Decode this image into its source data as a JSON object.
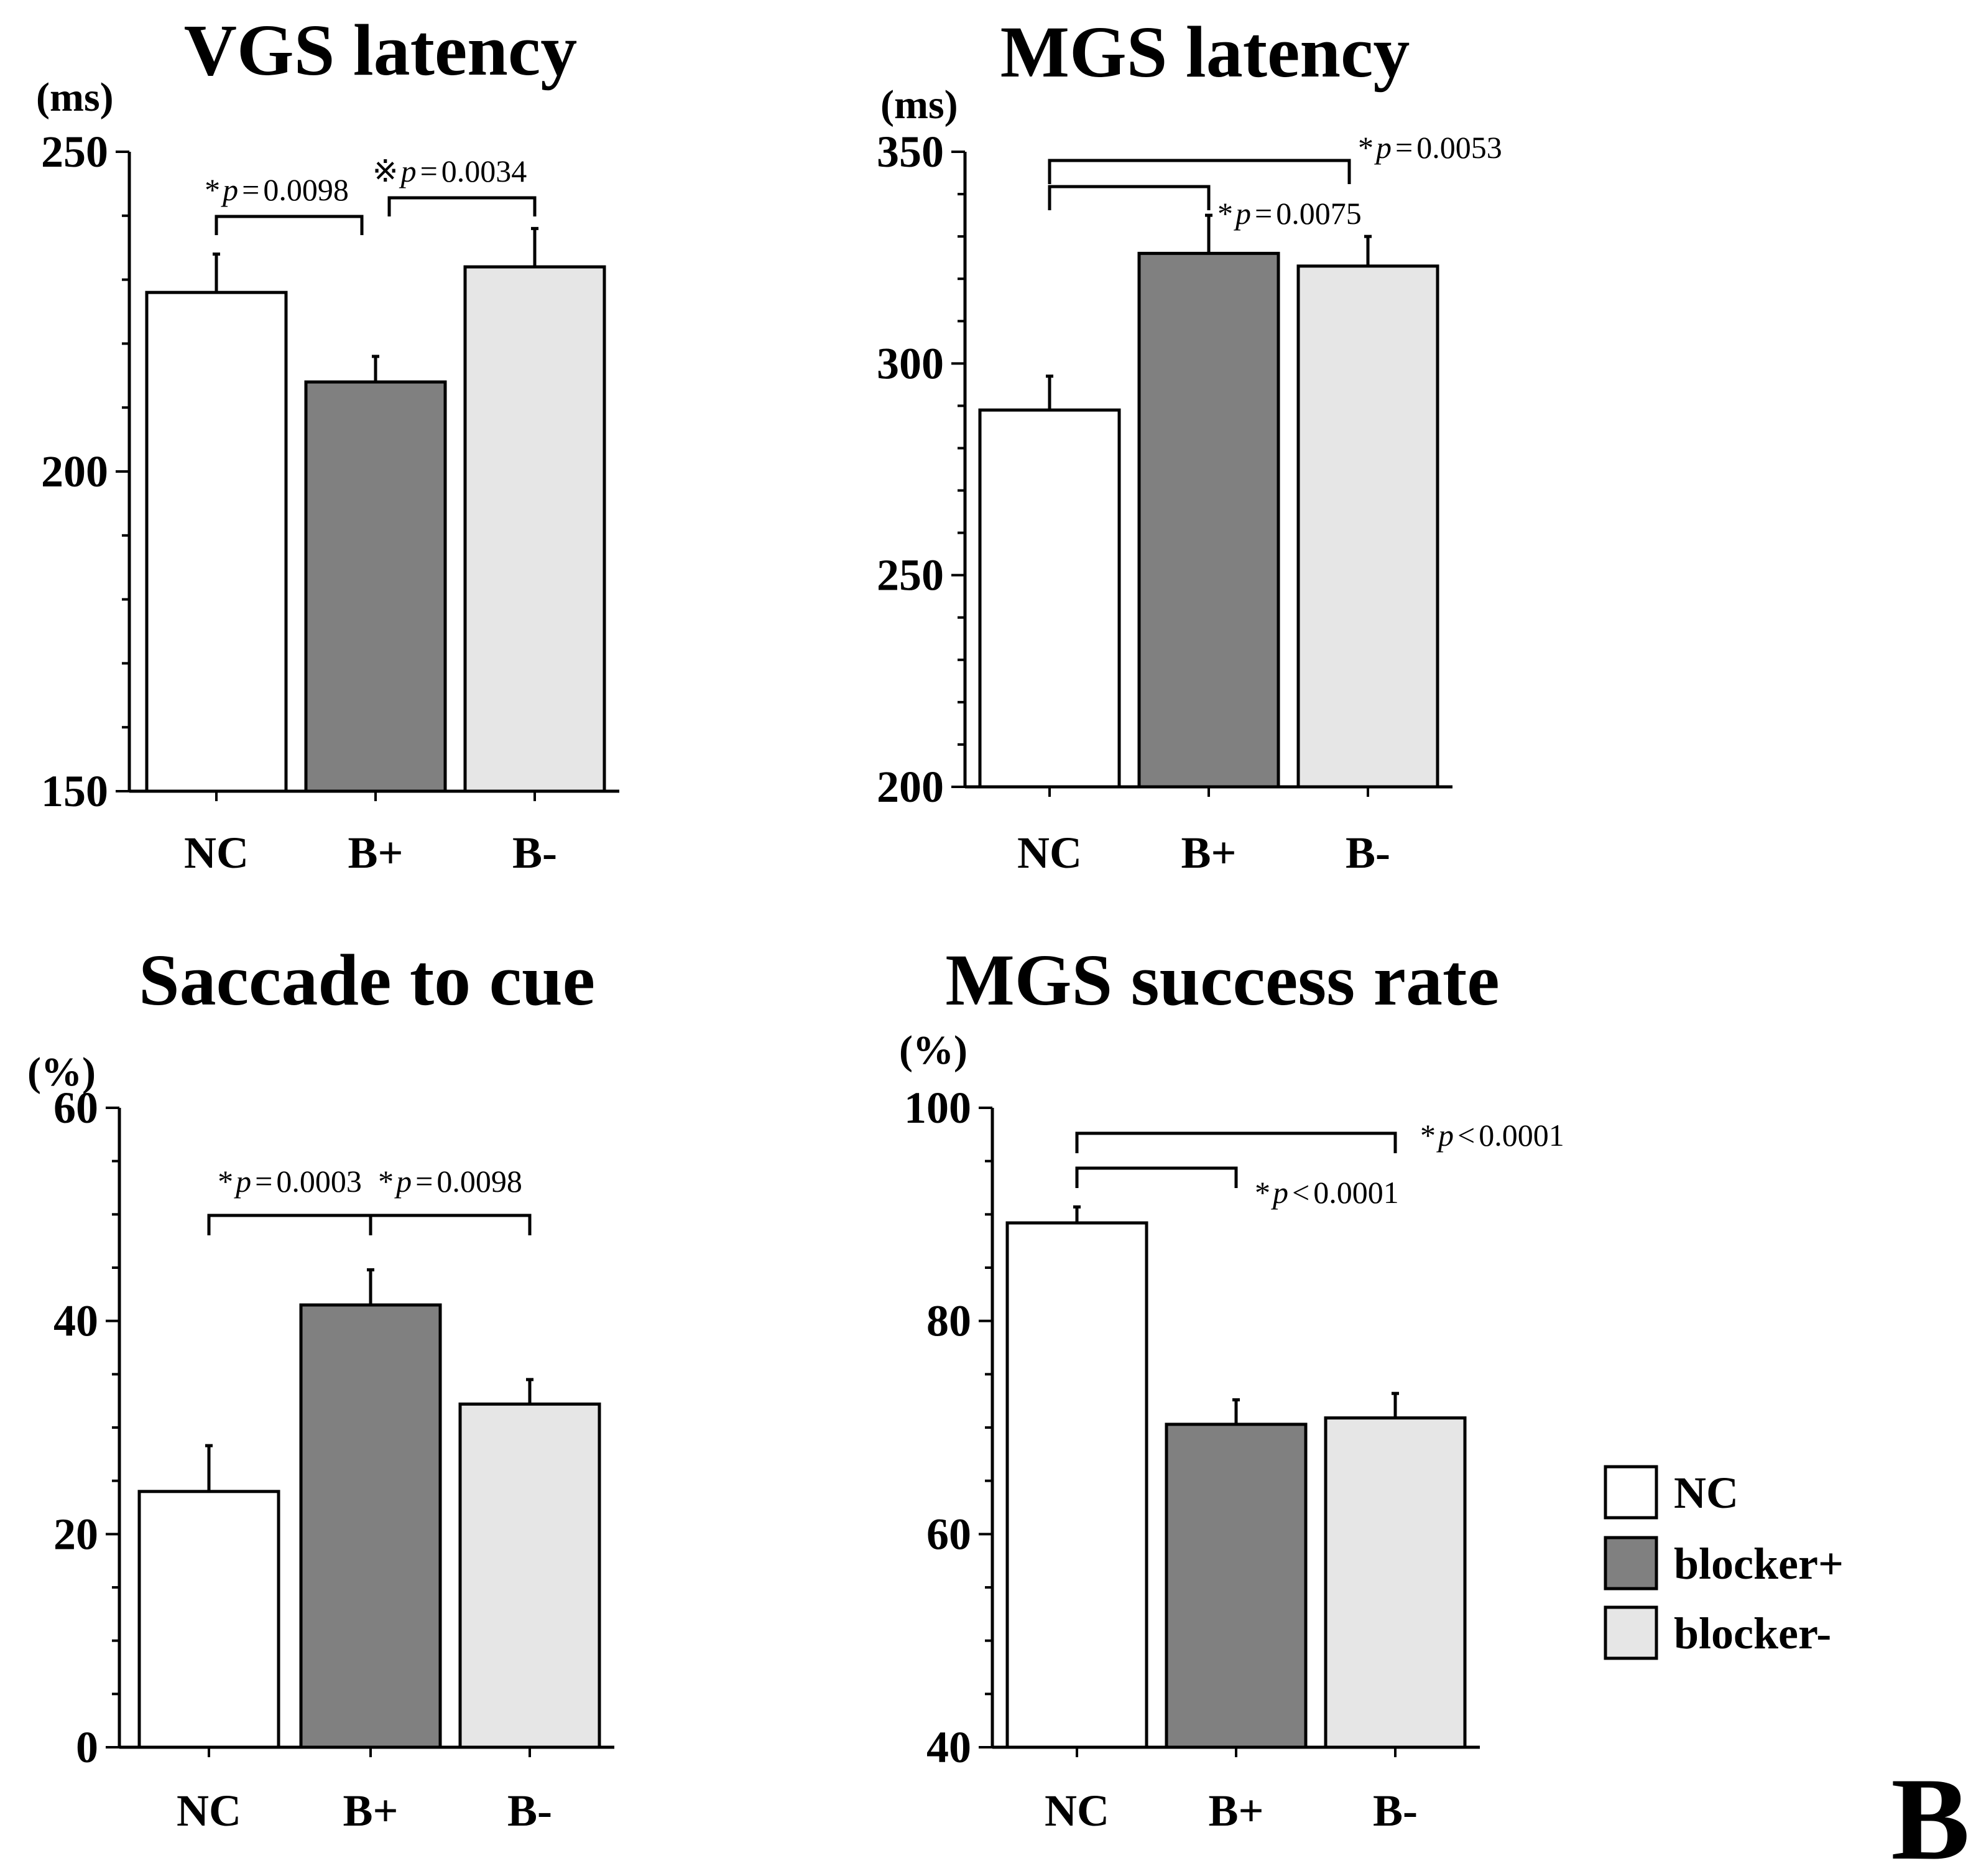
{
  "panel_label": "B",
  "legend": {
    "items": [
      {
        "label": "NC",
        "color": "#ffffff"
      },
      {
        "label": "blocker+",
        "color": "#808080"
      },
      {
        "label": "blocker-",
        "color": "#e6e6e6"
      }
    ]
  },
  "colors": {
    "NC": "#ffffff",
    "B+": "#808080",
    "B-": "#e6e6e6"
  },
  "chart_data": [
    {
      "type": "bar",
      "title": "VGS latency",
      "unit": "(ms)",
      "categories": [
        "NC",
        "B+",
        "B-"
      ],
      "values": [
        228,
        214,
        232
      ],
      "errors": [
        6,
        4,
        6
      ],
      "ylim": [
        150,
        250
      ],
      "yticks": [
        150,
        200,
        250
      ],
      "minor_step": 10,
      "grid": false,
      "annotations": [
        {
          "from": 0,
          "to": 1,
          "star": "*",
          "p": "p",
          "op": "=",
          "value": "0.0098",
          "level": 0
        },
        {
          "from": 1,
          "to": 2,
          "star": "※",
          "p": "p",
          "op": "=",
          "value": "0.0034",
          "level": 1
        }
      ]
    },
    {
      "type": "bar",
      "title": "MGS latency",
      "unit": "(ms)",
      "categories": [
        "NC",
        "B+",
        "B-"
      ],
      "values": [
        289,
        326,
        323
      ],
      "errors": [
        8,
        9,
        7
      ],
      "ylim": [
        200,
        350
      ],
      "yticks": [
        200,
        250,
        300,
        350
      ],
      "minor_step": 10,
      "grid": false,
      "annotations": [
        {
          "from": 0,
          "to": 2,
          "star": "*",
          "p": "p",
          "op": "=",
          "value": "0.0053",
          "level": 1
        },
        {
          "from": 0,
          "to": 1,
          "star": "*",
          "p": "p",
          "op": "=",
          "value": "0.0075",
          "level": 0
        }
      ]
    },
    {
      "type": "bar",
      "title": "Saccade to cue",
      "unit": "(%)",
      "categories": [
        "NC",
        "B+",
        "B-"
      ],
      "values": [
        24,
        41.5,
        32.2
      ],
      "errors": [
        4.3,
        3.3,
        2.3
      ],
      "ylim": [
        0,
        60
      ],
      "yticks": [
        0,
        20,
        40,
        60
      ],
      "minor_step": 5,
      "grid": false,
      "annotations": [
        {
          "from": 0,
          "to": 1,
          "star": "*",
          "p": "p",
          "op": "=",
          "value": "0.0003",
          "level": 0
        },
        {
          "from": 1,
          "to": 2,
          "star": "*",
          "p": "p",
          "op": "=",
          "value": "0.0098",
          "level": 0
        }
      ]
    },
    {
      "type": "bar",
      "title": "MGS success rate",
      "unit": "(%)",
      "categories": [
        "NC",
        "B+",
        "B-"
      ],
      "values": [
        89.2,
        70.3,
        70.9
      ],
      "errors": [
        1.5,
        2.3,
        2.3
      ],
      "ylim": [
        40,
        100
      ],
      "yticks": [
        40,
        60,
        80,
        100
      ],
      "minor_step": 5,
      "grid": false,
      "annotations": [
        {
          "from": 0,
          "to": 2,
          "star": "*",
          "p": "p",
          "op": "<",
          "value": "0.0001",
          "level": 1
        },
        {
          "from": 0,
          "to": 1,
          "star": "*",
          "p": "p",
          "op": "<",
          "value": "0.0001",
          "level": 0
        }
      ]
    }
  ]
}
